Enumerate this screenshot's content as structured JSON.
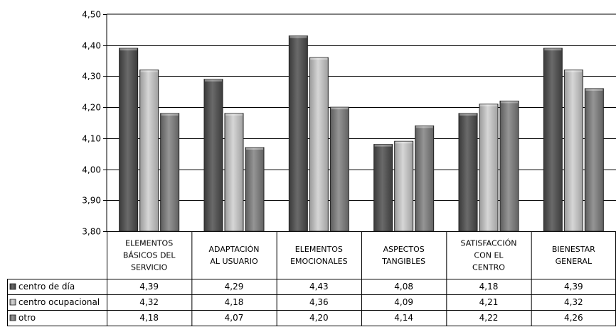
{
  "chart_data": {
    "type": "bar",
    "title": "",
    "xlabel": "",
    "ylabel": "",
    "ylim": [
      3.8,
      4.5
    ],
    "ytick_step": 0.1,
    "ytick_labels": [
      "3,80",
      "3,90",
      "4,00",
      "4,10",
      "4,20",
      "4,30",
      "4,40",
      "4,50"
    ],
    "grid": true,
    "legend_placement": "data-table-left",
    "categories": [
      [
        "ELEMENTOS",
        "BÁSICOS DEL",
        "SERVICIO"
      ],
      [
        "ADAPTACIÓN",
        "AL USUARIO"
      ],
      [
        "ELEMENTOS",
        "EMOCIONALES"
      ],
      [
        "ASPECTOS",
        "TANGIBLES"
      ],
      [
        "SATISFACCIÓN",
        "CON EL",
        "CENTRO"
      ],
      [
        "BIENESTAR",
        "GENERAL"
      ]
    ],
    "series": [
      {
        "name": "centro de día",
        "color": "#585858",
        "values": [
          4.39,
          4.29,
          4.43,
          4.08,
          4.18,
          4.39
        ],
        "labels": [
          "4,39",
          "4,29",
          "4,43",
          "4,08",
          "4,18",
          "4,39"
        ]
      },
      {
        "name": "centro ocupacional",
        "color": "#b4b4b4",
        "values": [
          4.32,
          4.18,
          4.36,
          4.09,
          4.21,
          4.32
        ],
        "labels": [
          "4,32",
          "4,18",
          "4,36",
          "4,09",
          "4,21",
          "4,32"
        ]
      },
      {
        "name": "otro",
        "color": "#7c7c7c",
        "values": [
          4.18,
          4.07,
          4.2,
          4.14,
          4.22,
          4.26
        ],
        "labels": [
          "4,18",
          "4,07",
          "4,20",
          "4,14",
          "4,22",
          "4,26"
        ]
      }
    ]
  }
}
